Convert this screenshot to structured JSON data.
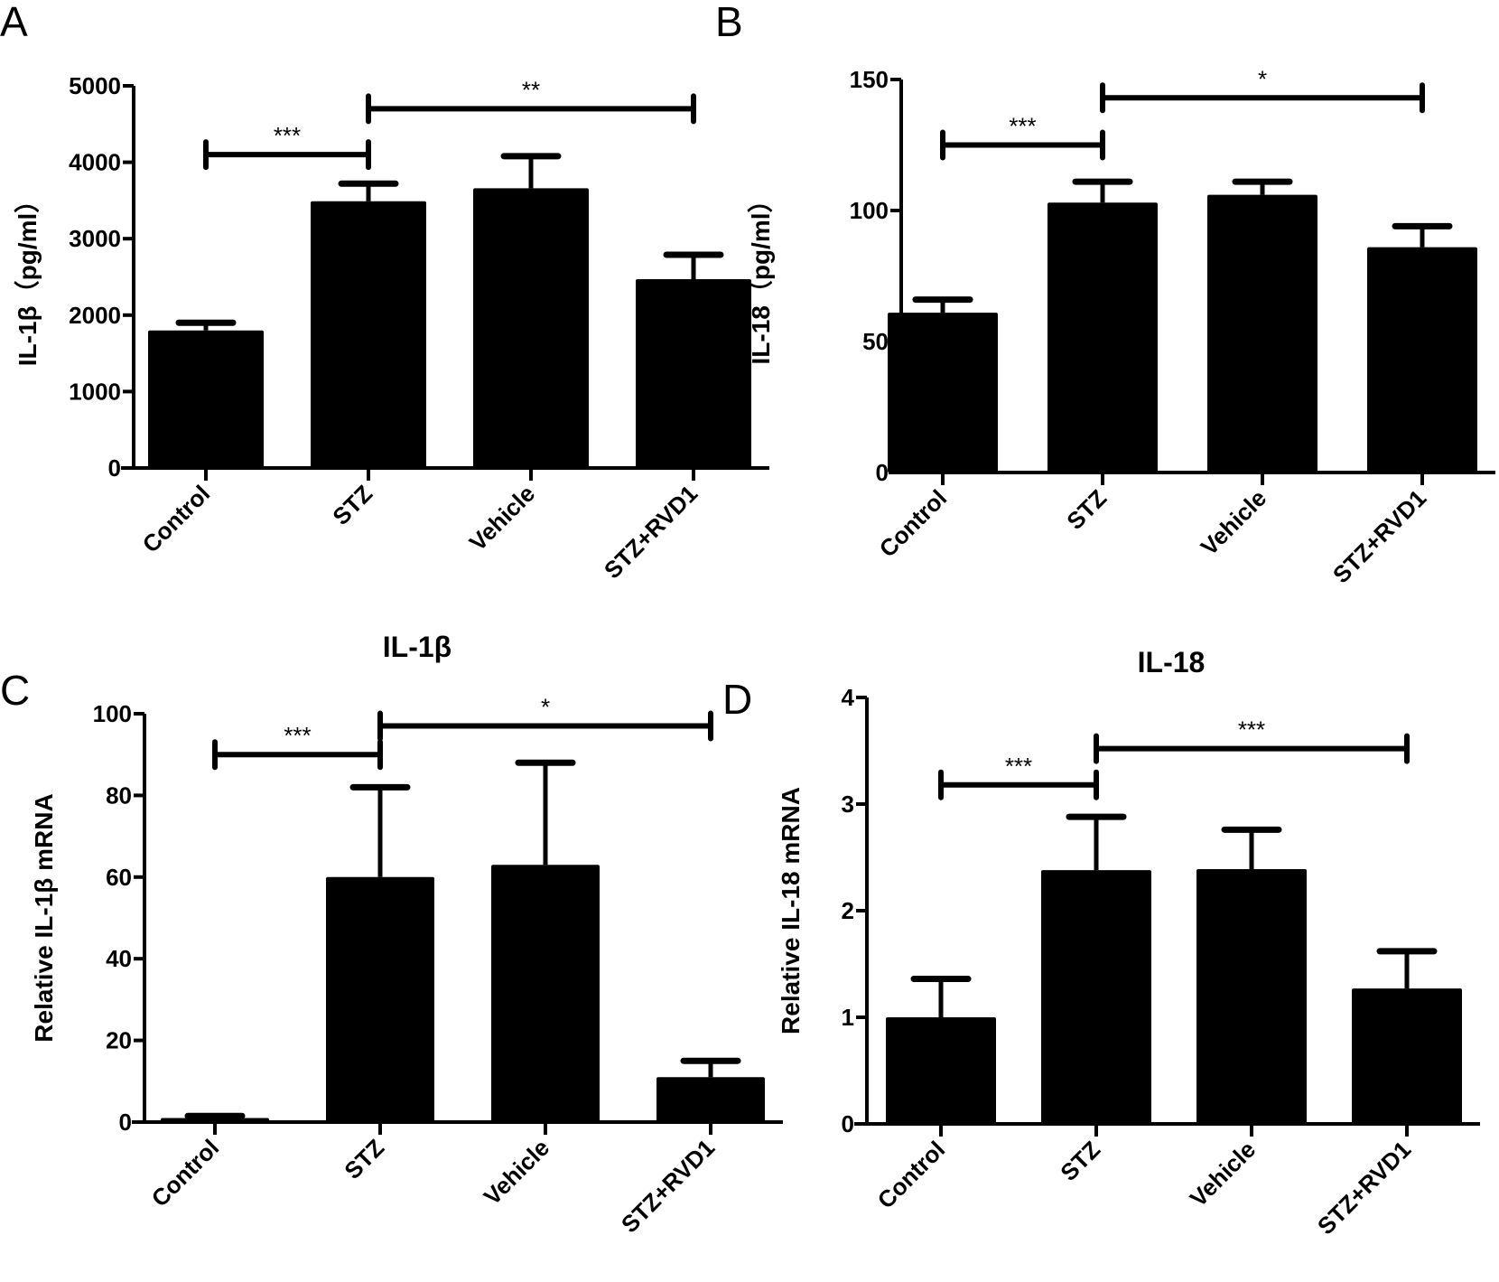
{
  "chart_data": [
    {
      "panel": "A",
      "type": "bar",
      "title": "",
      "xlabel": "",
      "ylabel": "IL-1β（pg/ml）",
      "categories": [
        "Control",
        "STZ",
        "Vehicle",
        "STZ+RVD1"
      ],
      "values": [
        1800,
        3490,
        3660,
        2470
      ],
      "error": [
        100,
        230,
        420,
        320
      ],
      "ylim": [
        0,
        5000
      ],
      "yticks": [
        0,
        1000,
        2000,
        3000,
        4000,
        5000
      ],
      "bar_color": "#000000",
      "significance": [
        {
          "from": 0,
          "to": 1,
          "label": "***",
          "y": 4100
        },
        {
          "from": 1,
          "to": 3,
          "label": "**",
          "y": 4700
        }
      ]
    },
    {
      "panel": "B",
      "type": "bar",
      "title": "",
      "xlabel": "",
      "ylabel": "IL-18（pg/ml）",
      "categories": [
        "Control",
        "STZ",
        "Vehicle",
        "STZ+RVD1"
      ],
      "values": [
        61,
        103,
        106,
        86
      ],
      "error": [
        5,
        8,
        5,
        8
      ],
      "ylim": [
        0,
        150
      ],
      "yticks": [
        0,
        50,
        100,
        150
      ],
      "bar_color": "#000000",
      "significance": [
        {
          "from": 0,
          "to": 1,
          "label": "***",
          "y": 125
        },
        {
          "from": 1,
          "to": 3,
          "label": "*",
          "y": 143
        }
      ]
    },
    {
      "panel": "C",
      "type": "bar",
      "title": "IL-1β",
      "xlabel": "",
      "ylabel": "Relative IL-1β  mRNA",
      "categories": [
        "Control",
        "STZ",
        "Vehicle",
        "STZ+RVD1"
      ],
      "values": [
        1,
        60,
        63,
        11
      ],
      "error": [
        0.5,
        22,
        25,
        4
      ],
      "ylim": [
        0,
        100
      ],
      "yticks": [
        0,
        20,
        40,
        60,
        80,
        100
      ],
      "bar_color": "#000000",
      "significance": [
        {
          "from": 0,
          "to": 1,
          "label": "***",
          "y": 90
        },
        {
          "from": 1,
          "to": 3,
          "label": "*",
          "y": 97
        }
      ]
    },
    {
      "panel": "D",
      "type": "bar",
      "title": "IL-18",
      "xlabel": "",
      "ylabel": "Relative IL-18 mRNA",
      "categories": [
        "Control",
        "STZ",
        "Vehicle",
        "STZ+RVD1"
      ],
      "values": [
        1.0,
        2.38,
        2.39,
        1.27
      ],
      "error": [
        0.36,
        0.5,
        0.37,
        0.35
      ],
      "ylim": [
        0,
        4
      ],
      "yticks": [
        0,
        1,
        2,
        3,
        4
      ],
      "bar_color": "#000000",
      "significance": [
        {
          "from": 0,
          "to": 1,
          "label": "***",
          "y": 3.18
        },
        {
          "from": 1,
          "to": 3,
          "label": "***",
          "y": 3.52
        }
      ]
    }
  ]
}
